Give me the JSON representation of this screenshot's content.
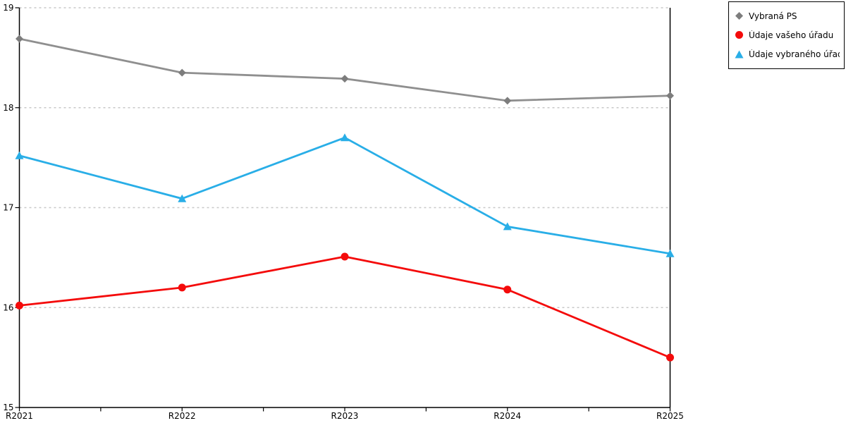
{
  "chart_data": {
    "type": "line",
    "title": "",
    "xlabel": "",
    "ylabel": "",
    "categories": [
      "R2021",
      "R2022",
      "R2023",
      "R2024",
      "R2025"
    ],
    "series": [
      {
        "name": "Vybraná PS",
        "marker": "diamond",
        "color": "#8f8f8f",
        "marker_color": "#7d7d7d",
        "values": [
          18.69,
          18.35,
          18.29,
          18.07,
          18.12
        ]
      },
      {
        "name": "Údaje vašeho úřadu",
        "marker": "circle",
        "color": "#f40b0b",
        "marker_color": "#f40b0b",
        "values": [
          16.02,
          16.2,
          16.51,
          16.18,
          15.5
        ]
      },
      {
        "name": "Údaje vybraného úřadu",
        "marker": "triangle",
        "color": "#29aee7",
        "marker_color": "#29aee7",
        "values": [
          17.52,
          17.09,
          17.7,
          16.81,
          16.54
        ]
      }
    ],
    "ylim": [
      15,
      19
    ],
    "yticks": [
      15,
      16,
      17,
      18,
      19
    ],
    "grid": "horizontal-dashed",
    "legend_position": "top-right",
    "colors": {
      "axis": "#000000",
      "gridline": "#c8c8c8",
      "background": "#ffffff"
    }
  },
  "legend": {
    "items": [
      {
        "label": "Vybraná PS"
      },
      {
        "label": "Údaje vašeho úřadu"
      },
      {
        "label": "Údaje vybraného úřadu"
      }
    ]
  }
}
